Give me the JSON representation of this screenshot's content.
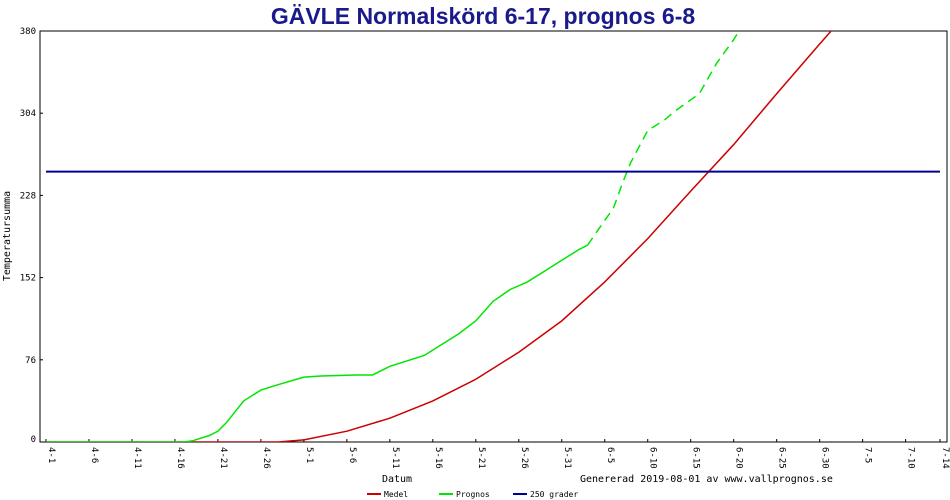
{
  "chart_data": {
    "type": "line",
    "title": "GÄVLE Normalskörd 6-17, prognos 6-8",
    "xlabel": "Datum",
    "ylabel": "Temperatursumma",
    "footer": "Genererad 2019-08-01 av www.vallprognos.se",
    "ylim": [
      0,
      380
    ],
    "yticks": [
      0,
      76,
      152,
      228,
      304,
      380
    ],
    "ytick_labels": [
      "0",
      "76",
      "152",
      "228",
      "304",
      "380"
    ],
    "xlim": [
      0,
      104
    ],
    "xticks": [
      0,
      5,
      10,
      15,
      20,
      25,
      30,
      35,
      40,
      45,
      50,
      55,
      60,
      65,
      70,
      75,
      80,
      85,
      90,
      95,
      100,
      104
    ],
    "xtick_labels": [
      "4-1",
      "4-6",
      "4-11",
      "4-16",
      "4-21",
      "4-26",
      "5-1",
      "5-6",
      "5-11",
      "5-16",
      "5-21",
      "5-26",
      "5-31",
      "6-5",
      "6-10",
      "6-15",
      "6-20",
      "6-25",
      "6-30",
      "7-5",
      "7-10",
      "7-14"
    ],
    "legend": {
      "placement": "bottom"
    },
    "series": [
      {
        "name": "Medel",
        "color": "#cc0000",
        "x": [
          0,
          10,
          20,
          27,
          30,
          35,
          40,
          45,
          50,
          55,
          60,
          65,
          70,
          75,
          80,
          85,
          90,
          93
        ],
        "y": [
          0,
          0,
          0,
          0,
          2,
          10,
          22,
          38,
          58,
          83,
          112,
          148,
          188,
          232,
          275,
          322,
          368,
          395
        ]
      },
      {
        "name": "Prognos",
        "color": "#00e600",
        "x": [
          0,
          10,
          16,
          17,
          19,
          20,
          21,
          23,
          25,
          27,
          30,
          32,
          36,
          38,
          40,
          44,
          48,
          50,
          52,
          54,
          56,
          58,
          60,
          62,
          63,
          65,
          66,
          67,
          68,
          70,
          72,
          73,
          76,
          78,
          80,
          81
        ],
        "y": [
          0,
          0,
          0,
          1,
          6,
          10,
          18,
          38,
          48,
          53,
          60,
          61,
          62,
          62,
          70,
          80,
          100,
          112,
          130,
          141,
          148,
          158,
          168,
          178,
          182,
          205,
          216,
          238,
          258,
          288,
          298,
          305,
          322,
          350,
          372,
          385
        ],
        "dashed_from_x": 63
      },
      {
        "name": "250 grader",
        "color": "#000099",
        "x": [
          0,
          104
        ],
        "y": [
          250,
          250
        ]
      }
    ]
  }
}
